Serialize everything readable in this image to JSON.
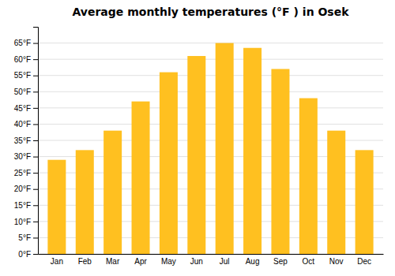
{
  "chart_data": {
    "type": "bar",
    "title": "Average monthly temperatures (°F ) in Osek",
    "categories": [
      "Jan",
      "Feb",
      "Mar",
      "Apr",
      "May",
      "Jun",
      "Jul",
      "Aug",
      "Sep",
      "Oct",
      "Nov",
      "Dec"
    ],
    "values": [
      29,
      32,
      38,
      47,
      56,
      61,
      65,
      63.5,
      57,
      48,
      38,
      32
    ],
    "color": "#FFC020",
    "ylim": [
      0,
      70
    ],
    "yticks": [
      {
        "value": 0,
        "label": "0°F"
      },
      {
        "value": 5,
        "label": "5°F"
      },
      {
        "value": 10,
        "label": "10°F"
      },
      {
        "value": 15,
        "label": "15°F"
      },
      {
        "value": 20,
        "label": "20°F"
      },
      {
        "value": 25,
        "label": "25°F"
      },
      {
        "value": 30,
        "label": "30°F"
      },
      {
        "value": 35,
        "label": "35°F"
      },
      {
        "value": 40,
        "label": "40°F"
      },
      {
        "value": 45,
        "label": "45°F"
      },
      {
        "value": 50,
        "label": "50°F"
      },
      {
        "value": 55,
        "label": "55°F"
      },
      {
        "value": 60,
        "label": "60°F"
      },
      {
        "value": 65,
        "label": "65°F"
      }
    ],
    "grid": true
  }
}
